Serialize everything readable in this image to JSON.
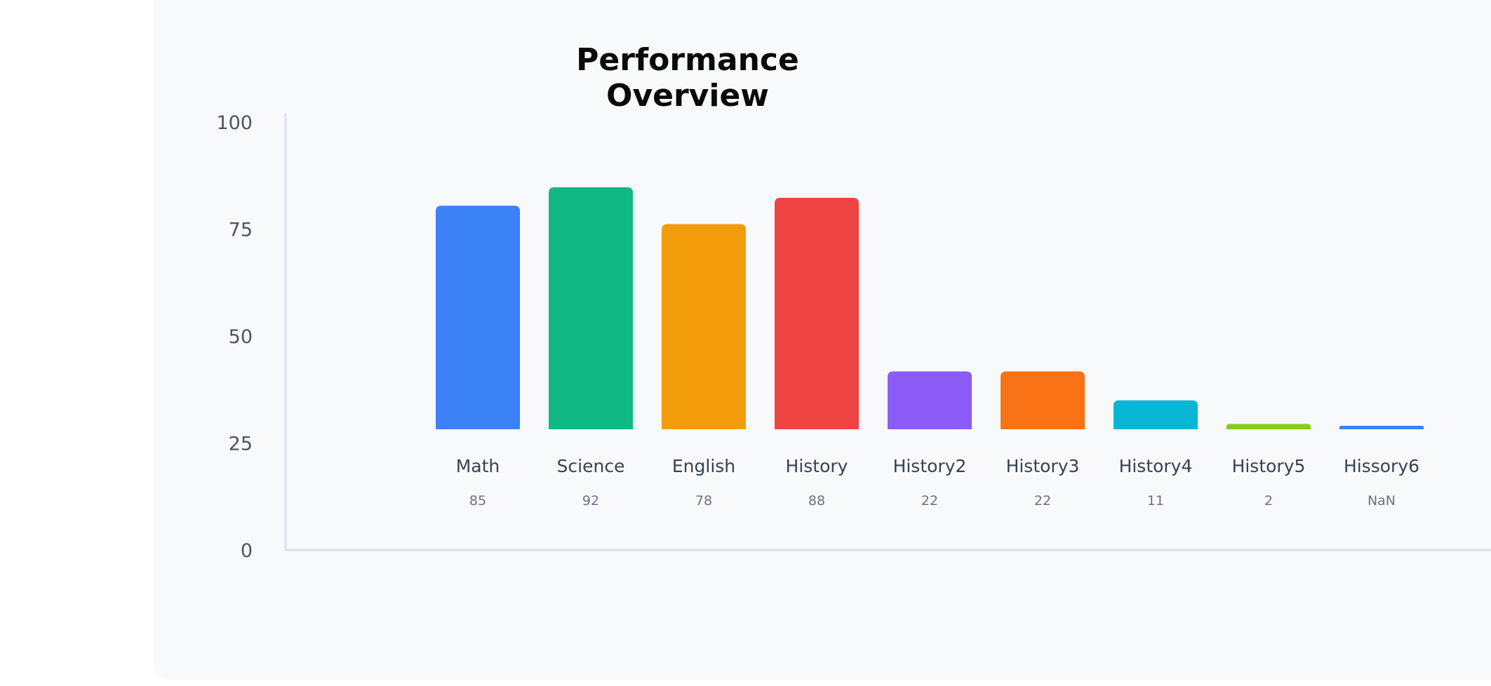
{
  "chart_data": {
    "type": "bar",
    "title": "Performance Overview",
    "categories": [
      "Math",
      "Science",
      "English",
      "History",
      "History2",
      "History3",
      "History4",
      "History5",
      "Hissory6"
    ],
    "values": [
      85,
      92,
      78,
      88,
      22,
      22,
      11,
      2,
      null
    ],
    "value_labels": [
      "85",
      "92",
      "78",
      "88",
      "22",
      "22",
      "11",
      "2",
      "NaN"
    ],
    "colors": [
      "#3b82f6",
      "#10b981",
      "#f39c0b",
      "#ef4444",
      "#8b5cf6",
      "#f97316",
      "#06b6d4",
      "#84cc16",
      "#3b82f6"
    ],
    "y_ticks": [
      0,
      25,
      50,
      75,
      100
    ],
    "ylim": [
      0,
      100
    ],
    "xlabel": "",
    "ylabel": "",
    "grid": false,
    "legend": "none"
  }
}
